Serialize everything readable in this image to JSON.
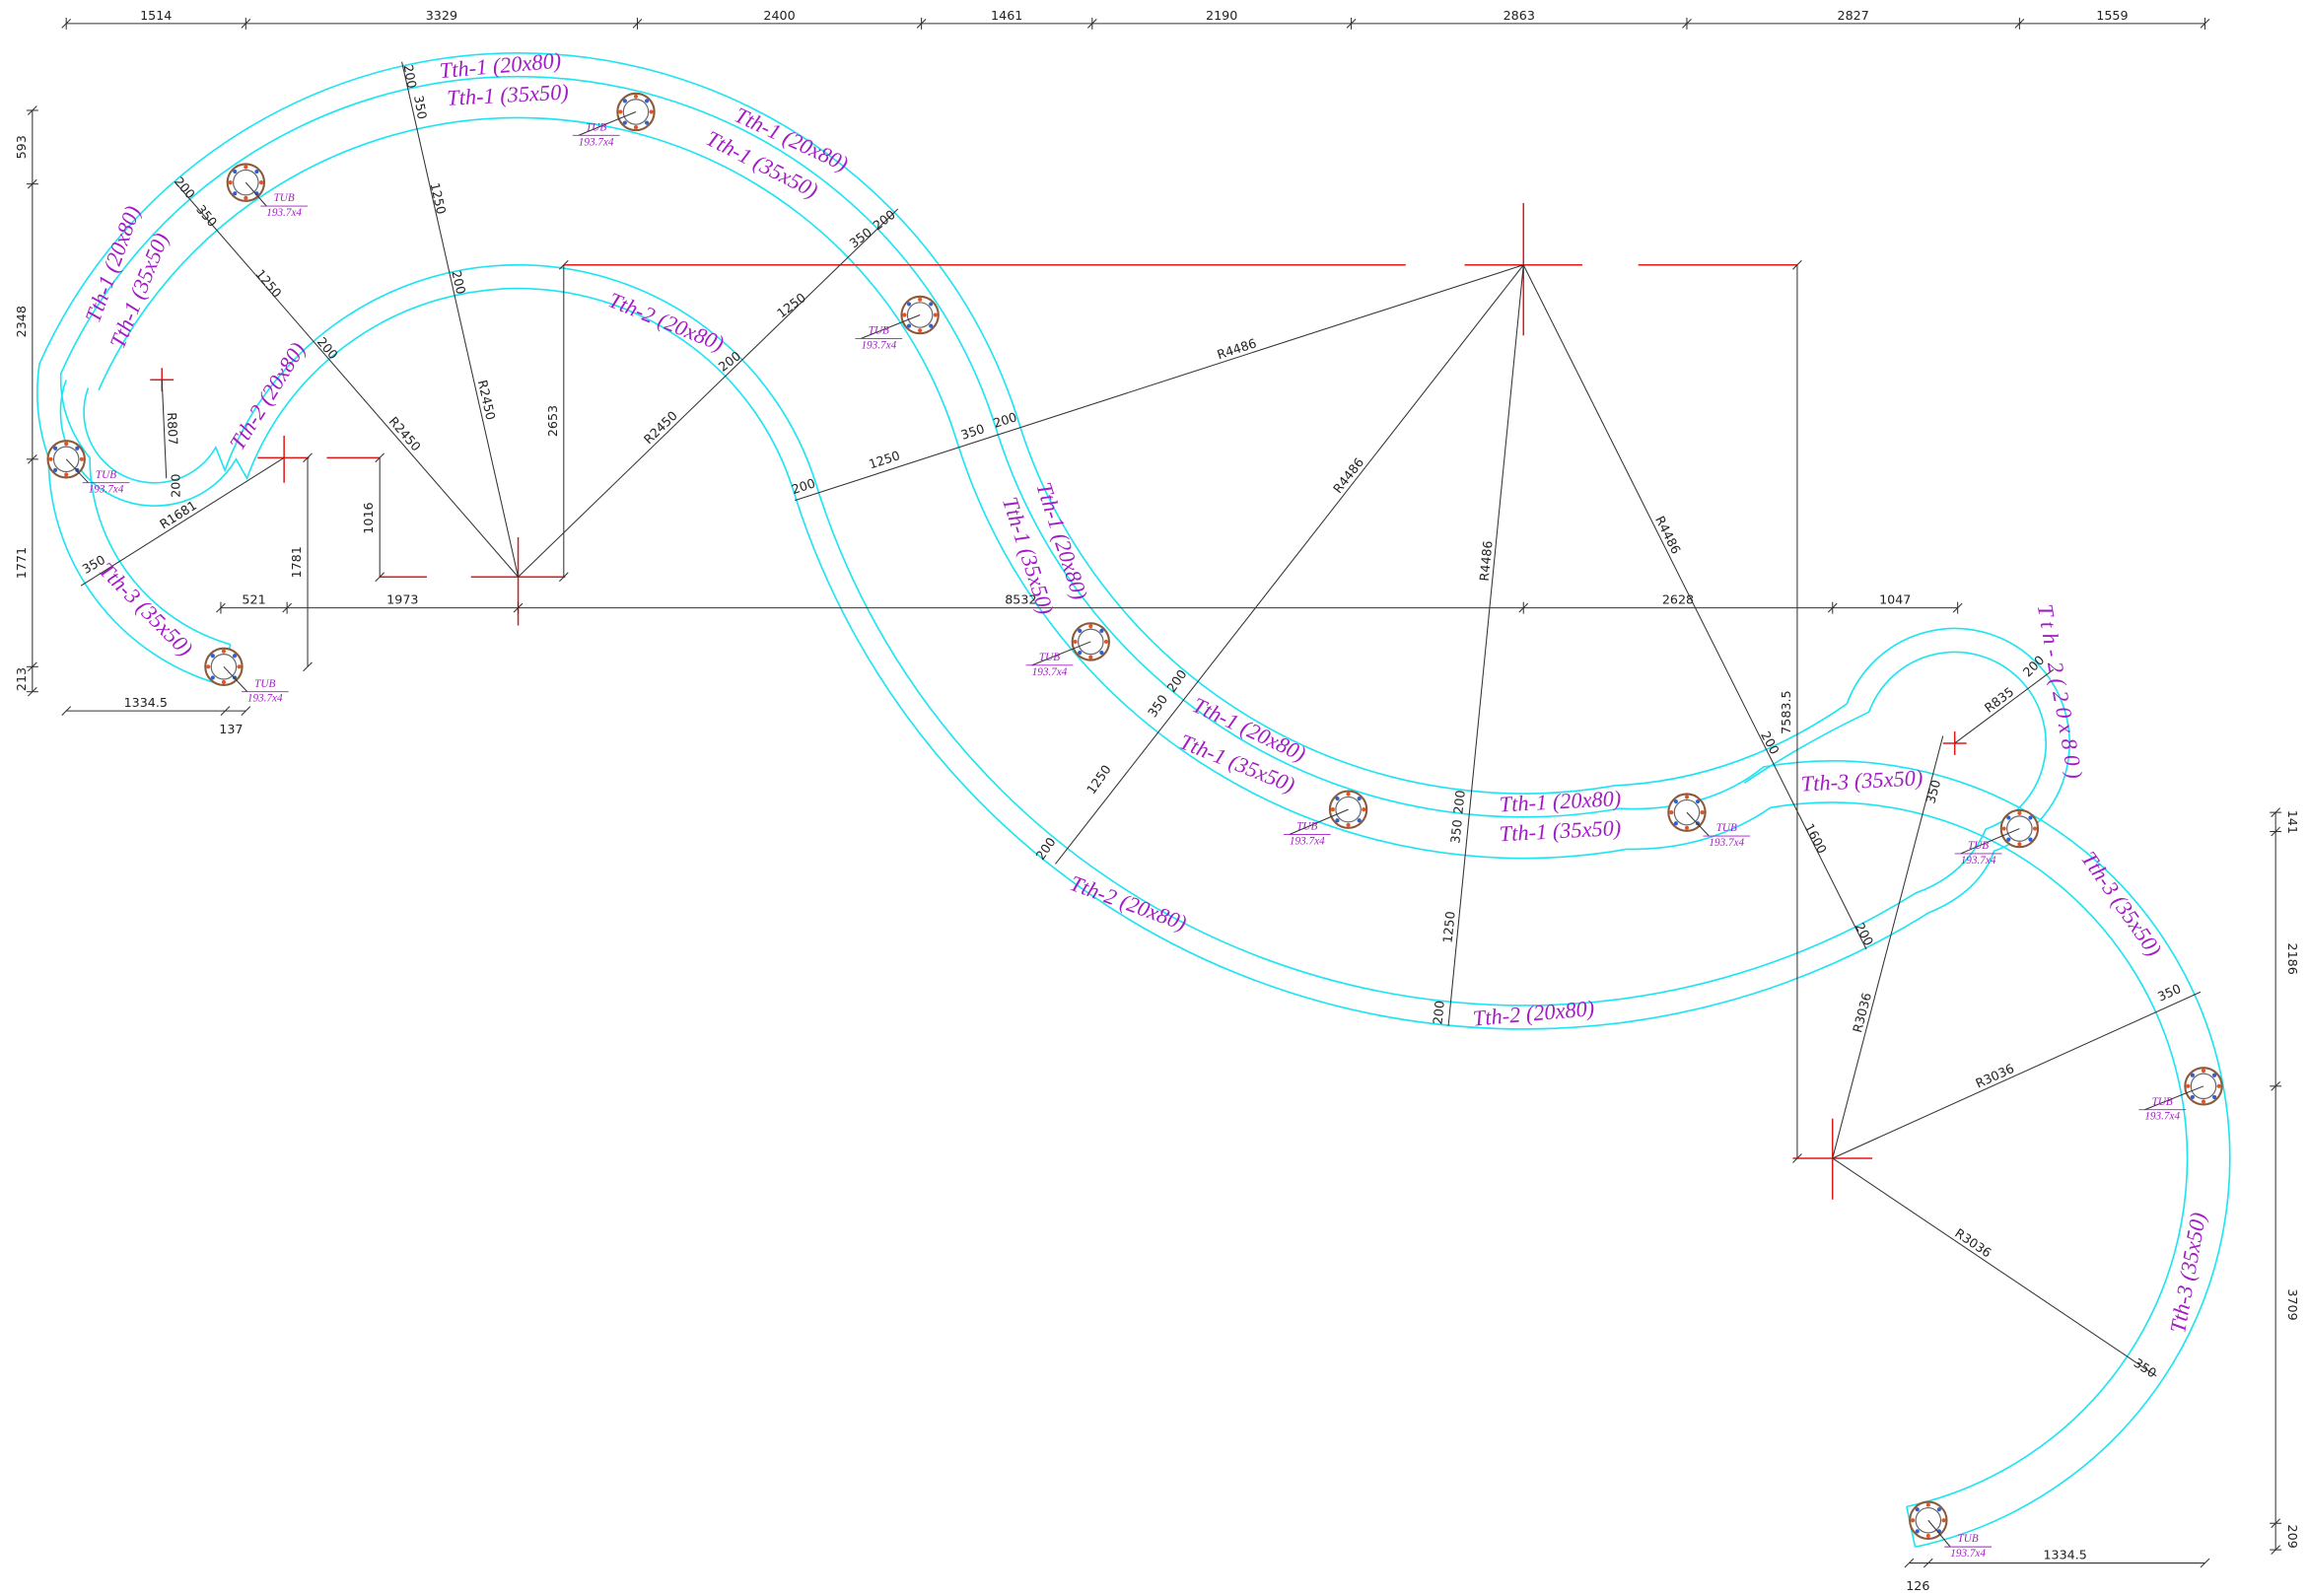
{
  "dimensions": {
    "top": [
      "1514",
      "3329",
      "2400",
      "1461",
      "2190",
      "2863",
      "2827",
      "1559"
    ],
    "left": [
      "593",
      "2348",
      "1771",
      "213"
    ],
    "right": [
      "141",
      "2186",
      "3709",
      "209"
    ],
    "middle": [
      "521",
      "1973",
      "8532",
      "2628",
      "1047"
    ],
    "bottom_left": [
      "1334.5",
      "137"
    ],
    "bottom_right": [
      "1334.5",
      "126"
    ],
    "vertical": [
      "2653",
      "1781",
      "1016",
      "7583.5"
    ]
  },
  "radii": [
    "R2450",
    "R2450",
    "R2450",
    "R4486",
    "R4486",
    "R4486",
    "R4486",
    "R3036",
    "R3036",
    "R3036",
    "R807",
    "R1681",
    "R835"
  ],
  "segments": [
    "200",
    "350",
    "1250",
    "200",
    "200",
    "350",
    "1250",
    "200",
    "350",
    "200",
    "1250",
    "200",
    "200",
    "350",
    "1250",
    "200",
    "200",
    "350",
    "200",
    "350",
    "1250",
    "200",
    "200",
    "350",
    "1250",
    "200",
    "200",
    "1600",
    "200",
    "350",
    "350",
    "350",
    "200"
  ],
  "beams": [
    "Tth-1 (20x80)",
    "Tth-1 (35x50)",
    "Tth-1 (20x80)",
    "Tth-1 (35x50)",
    "Tth-1 (20x80)",
    "Tth-1 (35x50)",
    "Tth-2 (20x80)",
    "Tth-2 (20x80)",
    "Tth-3 (35x50)",
    "Tth-1 (20x80)",
    "Tth-1 (35x50)",
    "Tth-1 (20x80)",
    "Tth-1 (35x50)",
    "Tth-2 (20x80)",
    "Tth-1 (20x80)",
    "Tth-1 (35x50)",
    "Tth-3 (35x50)",
    "T t h - 2 ( 2 0 x 8 0 )",
    "Tth-2 (20x80)",
    "Tth-3 (35x50)",
    "Tth-3 (35x50)"
  ],
  "columns": [
    {
      "type": "TUB",
      "size": "193.7x4"
    },
    {
      "type": "TUB",
      "size": "193.7x4"
    },
    {
      "type": "TUB",
      "size": "193.7x4"
    },
    {
      "type": "TUB",
      "size": "193.7x4"
    },
    {
      "type": "TUB",
      "size": "193.7x4"
    },
    {
      "type": "TUB",
      "size": "193.7x4"
    },
    {
      "type": "TUB",
      "size": "193.7x4"
    },
    {
      "type": "TUB",
      "size": "193.7x4"
    },
    {
      "type": "TUB",
      "size": "193.7x4"
    },
    {
      "type": "TUB",
      "size": "193.7x4"
    },
    {
      "type": "TUB",
      "size": "193.7x4"
    }
  ]
}
